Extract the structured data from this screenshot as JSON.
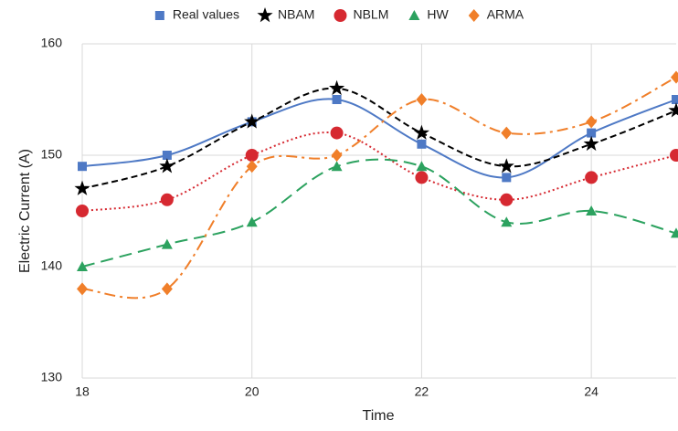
{
  "chart_data": {
    "type": "line",
    "x_label": "Time",
    "y_label": "Electric Current (A)",
    "x": [
      18,
      19,
      20,
      21,
      22,
      23,
      24,
      25
    ],
    "xlim": [
      18,
      25
    ],
    "xticks": [
      18,
      20,
      22,
      24
    ],
    "ylim": [
      130,
      160
    ],
    "yticks": [
      130,
      140,
      150,
      160
    ],
    "grid": true,
    "legend": "top",
    "series": [
      {
        "name": "Real values",
        "color": "#4e79c5",
        "marker": "square",
        "dash": "solid",
        "values": [
          149,
          150,
          153,
          155,
          151,
          148,
          152,
          155
        ]
      },
      {
        "name": "NBAM",
        "color": "#000000",
        "marker": "star",
        "dash": "dashed",
        "values": [
          147,
          149,
          153,
          156,
          152,
          149,
          151,
          154
        ]
      },
      {
        "name": "NBLM",
        "color": "#d62931",
        "marker": "circle",
        "dash": "dotted",
        "values": [
          145,
          146,
          150,
          152,
          148,
          146,
          148,
          150
        ]
      },
      {
        "name": "HW",
        "color": "#2ca25f",
        "marker": "triangle",
        "dash": "longdash",
        "values": [
          140,
          142,
          144,
          149,
          149,
          144,
          145,
          143
        ]
      },
      {
        "name": "ARMA",
        "color": "#f07f2a",
        "marker": "diamond",
        "dash": "dashdot",
        "values": [
          138,
          138,
          149,
          150,
          155,
          152,
          153,
          157
        ]
      }
    ]
  }
}
